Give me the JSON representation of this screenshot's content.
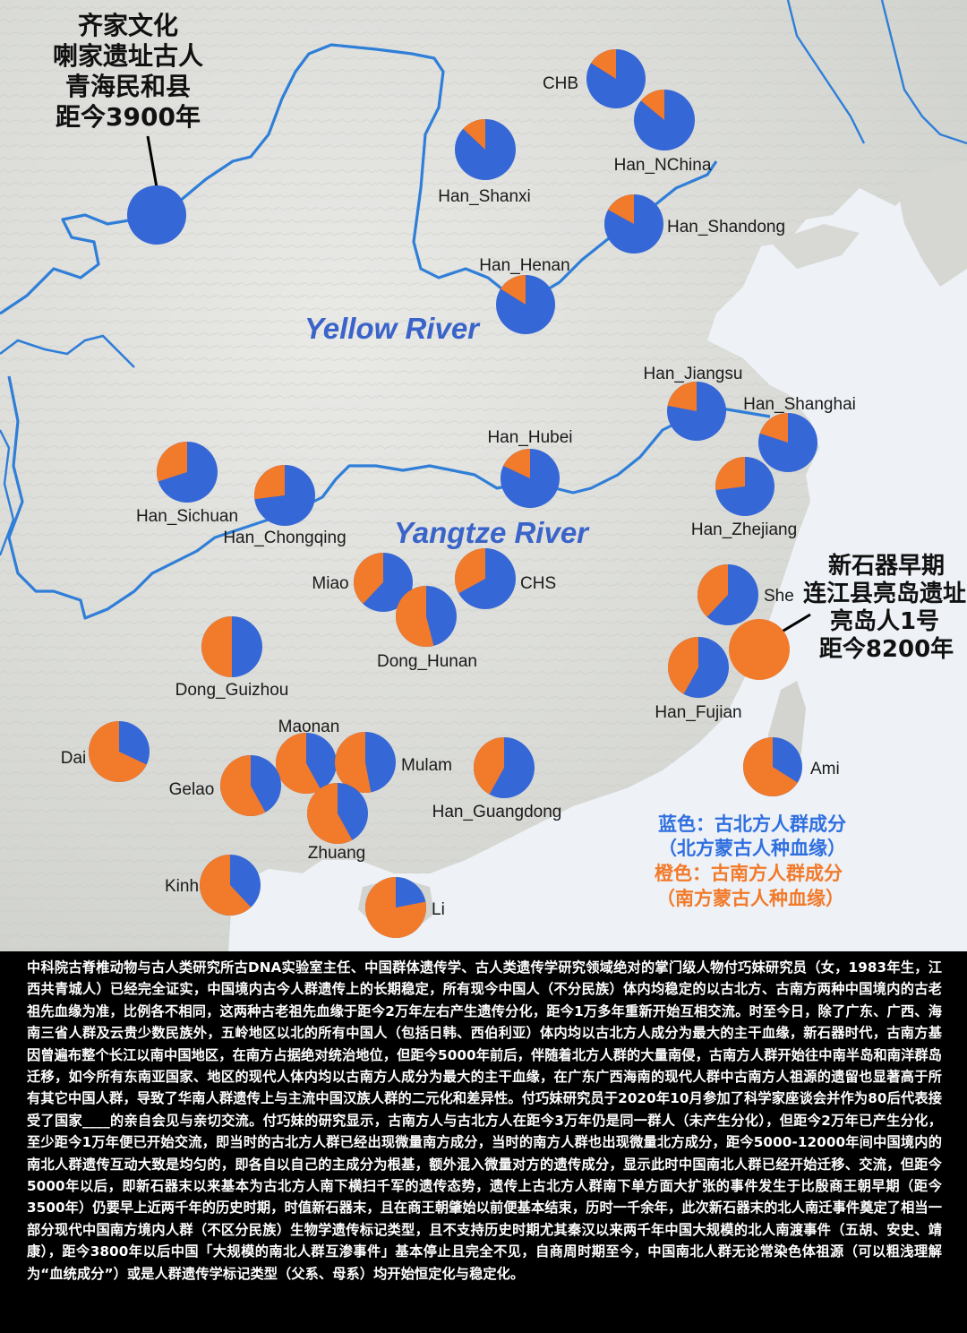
{
  "colors": {
    "north_blue": "#3567d6",
    "south_orange": "#f27a2b",
    "river": "#2f7ed8",
    "land": "#dfe0dc",
    "sea": "#eef2f6"
  },
  "rivers": {
    "yellow_label": "Yellow River",
    "yangtze_label": "Yangtze River"
  },
  "populations": [
    {
      "name": "CHB",
      "north_fraction": 0.84
    },
    {
      "name": "Han_NChina",
      "north_fraction": 0.86
    },
    {
      "name": "Han_Shanxi",
      "north_fraction": 0.87
    },
    {
      "name": "Han_Shandong",
      "north_fraction": 0.83
    },
    {
      "name": "Han_Henan",
      "north_fraction": 0.84
    },
    {
      "name": "Han_Jiangsu",
      "north_fraction": 0.78
    },
    {
      "name": "Han_Shanghai",
      "north_fraction": 0.8
    },
    {
      "name": "Han_Zhejiang",
      "north_fraction": 0.73
    },
    {
      "name": "Han_Hubei",
      "north_fraction": 0.82
    },
    {
      "name": "Han_Sichuan",
      "north_fraction": 0.7
    },
    {
      "name": "Han_Chongqing",
      "north_fraction": 0.73
    },
    {
      "name": "CHS",
      "north_fraction": 0.67
    },
    {
      "name": "Miao",
      "north_fraction": 0.62
    },
    {
      "name": "Dong_Hunan",
      "north_fraction": 0.46
    },
    {
      "name": "Dong_Guizhou",
      "north_fraction": 0.5
    },
    {
      "name": "She",
      "north_fraction": 0.62
    },
    {
      "name": "Han_Fujian",
      "north_fraction": 0.58
    },
    {
      "name": "Ami",
      "north_fraction": 0.34
    },
    {
      "name": "Han_Guangdong",
      "north_fraction": 0.58
    },
    {
      "name": "Dai",
      "north_fraction": 0.32
    },
    {
      "name": "Maonan",
      "north_fraction": 0.42
    },
    {
      "name": "Mulam",
      "north_fraction": 0.47
    },
    {
      "name": "Gelao",
      "north_fraction": 0.42
    },
    {
      "name": "Zhuang",
      "north_fraction": 0.42
    },
    {
      "name": "Kinh",
      "north_fraction": 0.38
    },
    {
      "name": "Li",
      "north_fraction": 0.22
    }
  ],
  "ancient_samples": [
    {
      "lines": [
        "齐家文化",
        "喇家遗址古人",
        "青海民和县",
        "距今3900年"
      ],
      "north_fraction": 1.0
    },
    {
      "lines": [
        "新石器早期",
        "连江县亮岛遗址",
        "亮岛人1号",
        "距今8200年"
      ],
      "north_fraction": 0.0
    }
  ],
  "legend": {
    "blue_line1": "蓝色：古北方人群成分",
    "blue_line2": "（北方蒙古人种血缘）",
    "orange_line1": "橙色：古南方人群成分",
    "orange_line2": "（南方蒙古人种血缘）"
  },
  "caption": "中科院古脊椎动物与古人类研究所古DNA实验室主任、中国群体遗传学、古人类遗传学研究领域绝对的掌门级人物付巧妹研究员（女，1983年生，江西共青城人）已经完全证实，中国境内古今人群遗传上的长期稳定，所有现今中国人（不分民族）体内均稳定的以古北方、古南方两种中国境内的古老祖先血缘为准，比例各不相同，这两种古老祖先血缘于距今2万年左右产生遗传分化，距今1万多年重新开始互相交流。时至今日，除了广东、广西、海南三省人群及云贵少数民族外，五岭地区以北的所有中国人（包括日韩、西伯利亚）体内均以古北方人成分为最大的主干血缘，新石器时代，古南方基因曾遍布整个长江以南中国地区，在南方占据绝对统治地位，但距今5000年前后，伴随着北方人群的大量南侵，古南方人群开始往中南半岛和南洋群岛迁移，如今所有东南亚国家、地区的现代人体内均以古南方人成分为最大的主干血缘，在广东广西海南的现代人群中古南方人祖源的遗留也显著高于所有其它中国人群，导致了华南人群遗传上与主流中国汉族人群的二元化和差异性。付巧妹研究员于2020年10月参加了科学家座谈会并作为80后代表接受了国家____的亲自会见与亲切交流。付巧妹的研究显示，古南方人与古北方人在距今3万年仍是同一群人（未产生分化），但距今2万年已产生分化，至少距今1万年便已开始交流，即当时的古北方人群已经出现微量南方成分，当时的南方人群也出现微量北方成分，距今5000-12000年间中国境内的南北人群遗传互动大致是均匀的，即各自以自己的主成分为根基，额外混入微量对方的遗传成分，显示此时中国南北人群已经开始迁移、交流，但距今5000年以后，即新石器末以来基本为古北方人南下横扫千军的遗传态势，遗传上古北方人群南下单方面大扩张的事件发生于比殷商王朝早期（距今3500年）仍要早上近两千年的历史时期，时值新石器末，且在商王朝肇始以前便基本结束，历时一千余年，此次新石器末的北人南迁事件奠定了相当一部分现代中国南方境内人群（不区分民族）生物学遗传标记类型，且不支持历史时期尤其秦汉以来两千年中国大规模的北人南渡事件（五胡、安史、靖康），距今3800年以后中国「大规模的南北人群互渗事件」基本停止且完全不见，自商周时期至今，中国南北人群无论常染色体祖源（可以粗浅理解为“血统成分”）或是人群遗传学标记类型（父系、母系）均开始恒定化与稳定化。"
}
